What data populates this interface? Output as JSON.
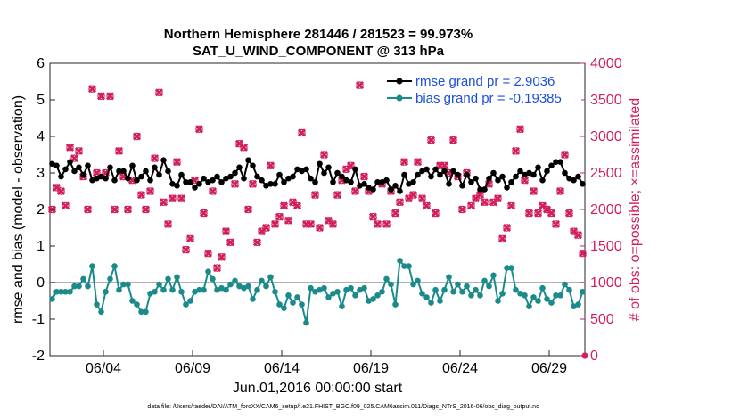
{
  "chart_data": {
    "type": "line",
    "title": "Northern Hemisphere 281446 / 281523 = 99.973%",
    "subtitle": "SAT_U_WIND_COMPONENT @ 313 hPa",
    "xlabel": "Jun.01,2016 00:00:00 start",
    "ylabel": "rmse and bias (model - observation)",
    "y2label": "# of obs: o=possible; ×=assimilated",
    "footer": "data file: /Users/raeder/DAI/ATM_forcXX/CAM6_setup/f.e21.FHIST_BGC.f09_025.CAM6assim.011/Diags_NTrS_2016-06/obs_diag_output.nc",
    "xlim": [
      1,
      31
    ],
    "ylim": [
      -2,
      6
    ],
    "y2lim": [
      0,
      4000
    ],
    "x_ticks": [
      4,
      9,
      14,
      19,
      24,
      29
    ],
    "x_tick_labels": [
      "06/04",
      "06/09",
      "06/14",
      "06/19",
      "06/24",
      "06/29"
    ],
    "y_ticks": [
      "-2",
      "-1",
      "0",
      "1",
      "2",
      "3",
      "4",
      "5",
      "6"
    ],
    "y2_ticks": [
      "0",
      "500",
      "1000",
      "1500",
      "2000",
      "2500",
      "3000",
      "3500",
      "4000"
    ],
    "legend": [
      "rmse grand pr = 2.9036",
      "bias grand pr = -0.19385"
    ],
    "colors": {
      "rmse": "#000000",
      "bias": "#1a8a8a",
      "obs": "#d11f5a",
      "legend_text": "#1f4fd8",
      "zero_line": "#b0b0b0"
    },
    "series": [
      {
        "name": "rmse",
        "x": [
          1.125,
          1.375,
          1.625,
          1.875,
          2.125,
          2.375,
          2.625,
          2.875,
          3.125,
          3.375,
          3.625,
          3.875,
          4.125,
          4.375,
          4.625,
          4.875,
          5.125,
          5.375,
          5.625,
          5.875,
          6.125,
          6.375,
          6.625,
          6.875,
          7.125,
          7.375,
          7.625,
          7.875,
          8.125,
          8.375,
          8.625,
          8.875,
          9.125,
          9.375,
          9.625,
          9.875,
          10.125,
          10.375,
          10.625,
          10.875,
          11.125,
          11.375,
          11.625,
          11.875,
          12.125,
          12.375,
          12.625,
          12.875,
          13.125,
          13.375,
          13.625,
          13.875,
          14.125,
          14.375,
          14.625,
          14.875,
          15.125,
          15.375,
          15.625,
          15.875,
          16.125,
          16.375,
          16.625,
          16.875,
          17.125,
          17.375,
          17.625,
          17.875,
          18.125,
          18.375,
          18.625,
          18.875,
          19.125,
          19.375,
          19.625,
          19.875,
          20.125,
          20.375,
          20.625,
          20.875,
          21.125,
          21.375,
          21.625,
          21.875,
          22.125,
          22.375,
          22.625,
          22.875,
          23.125,
          23.375,
          23.625,
          23.875,
          24.125,
          24.375,
          24.625,
          24.875,
          25.125,
          25.375,
          25.625,
          25.875,
          26.125,
          26.375,
          26.625,
          26.875,
          27.125,
          27.375,
          27.625,
          27.875,
          28.125,
          28.375,
          28.625,
          28.875,
          29.125,
          29.375,
          29.625,
          29.875,
          30.125,
          30.375,
          30.625,
          30.875
        ],
        "values": [
          3.25,
          3.2,
          2.9,
          3.1,
          3.3,
          3.05,
          3.15,
          2.95,
          3.2,
          2.8,
          2.85,
          2.9,
          2.85,
          3.15,
          2.8,
          3.05,
          3.05,
          2.85,
          3.2,
          2.8,
          2.9,
          3.05,
          2.8,
          3.15,
          2.95,
          3.35,
          3.05,
          2.7,
          2.65,
          2.95,
          2.75,
          2.75,
          2.6,
          2.7,
          2.85,
          2.75,
          2.8,
          2.9,
          2.75,
          2.85,
          2.9,
          3.0,
          3.15,
          2.85,
          3.35,
          3.2,
          2.9,
          2.8,
          2.65,
          2.7,
          2.7,
          2.95,
          2.75,
          2.85,
          2.9,
          3.1,
          3.05,
          3.1,
          2.85,
          2.75,
          3.25,
          3.0,
          3.15,
          2.75,
          3.0,
          2.9,
          2.8,
          2.75,
          3.1,
          2.65,
          2.7,
          2.6,
          2.55,
          2.75,
          2.75,
          2.8,
          2.55,
          2.65,
          2.5,
          2.95,
          2.7,
          2.75,
          2.95,
          3.05,
          3.1,
          2.9,
          3.1,
          2.95,
          3.05,
          2.7,
          3.05,
          2.95,
          2.65,
          2.95,
          2.75,
          2.85,
          2.55,
          2.55,
          2.85,
          3.0,
          2.8,
          2.9,
          2.6,
          2.75,
          2.9,
          3.05,
          2.95,
          3.0,
          2.95,
          3.15,
          2.8,
          3.05,
          3.2,
          3.3,
          3.3,
          3.0,
          2.85,
          2.8,
          2.9,
          2.7
        ]
      },
      {
        "name": "bias",
        "x": [
          1.125,
          1.375,
          1.625,
          1.875,
          2.125,
          2.375,
          2.625,
          2.875,
          3.125,
          3.375,
          3.625,
          3.875,
          4.125,
          4.375,
          4.625,
          4.875,
          5.125,
          5.375,
          5.625,
          5.875,
          6.125,
          6.375,
          6.625,
          6.875,
          7.125,
          7.375,
          7.625,
          7.875,
          8.125,
          8.375,
          8.625,
          8.875,
          9.125,
          9.375,
          9.625,
          9.875,
          10.125,
          10.375,
          10.625,
          10.875,
          11.125,
          11.375,
          11.625,
          11.875,
          12.125,
          12.375,
          12.625,
          12.875,
          13.125,
          13.375,
          13.625,
          13.875,
          14.125,
          14.375,
          14.625,
          14.875,
          15.125,
          15.375,
          15.625,
          15.875,
          16.125,
          16.375,
          16.625,
          16.875,
          17.125,
          17.375,
          17.625,
          17.875,
          18.125,
          18.375,
          18.625,
          18.875,
          19.125,
          19.375,
          19.625,
          19.875,
          20.125,
          20.375,
          20.625,
          20.875,
          21.125,
          21.375,
          21.625,
          21.875,
          22.125,
          22.375,
          22.625,
          22.875,
          23.125,
          23.375,
          23.625,
          23.875,
          24.125,
          24.375,
          24.625,
          24.875,
          25.125,
          25.375,
          25.625,
          25.875,
          26.125,
          26.375,
          26.625,
          26.875,
          27.125,
          27.375,
          27.625,
          27.875,
          28.125,
          28.375,
          28.625,
          28.875,
          29.125,
          29.375,
          29.625,
          29.875,
          30.125,
          30.375,
          30.625,
          30.875
        ],
        "values": [
          -0.45,
          -0.25,
          -0.25,
          -0.25,
          -0.25,
          -0.1,
          -0.1,
          0.1,
          -0.1,
          0.45,
          -0.6,
          -0.8,
          -0.25,
          0.1,
          0.45,
          -0.2,
          -0.05,
          -0.05,
          -0.5,
          -0.6,
          -0.8,
          -0.8,
          -0.3,
          -0.25,
          -0.05,
          -0.2,
          0.1,
          -0.2,
          0.15,
          -0.25,
          -0.6,
          -0.5,
          -0.25,
          -0.2,
          -0.2,
          0.3,
          0.1,
          -0.2,
          -0.15,
          -0.2,
          -0.05,
          0.05,
          -0.1,
          -0.15,
          -0.1,
          -0.45,
          -0.2,
          0.05,
          -0.1,
          0.15,
          -0.25,
          -0.6,
          -0.7,
          -0.35,
          -0.55,
          -0.4,
          -0.6,
          -1.1,
          -0.15,
          -0.25,
          -0.2,
          -0.15,
          -0.4,
          -0.3,
          -0.25,
          -0.65,
          -0.2,
          -0.15,
          -0.35,
          -0.2,
          -0.15,
          -0.5,
          -0.45,
          -0.35,
          -0.25,
          0.1,
          -0.05,
          -0.6,
          0.6,
          0.45,
          0.45,
          -0.05,
          0.05,
          -0.3,
          -0.4,
          -0.55,
          -0.2,
          -0.5,
          -0.2,
          0.15,
          -0.25,
          -0.05,
          -0.25,
          -0.1,
          -0.35,
          -0.2,
          -0.35,
          0.05,
          -0.1,
          0.2,
          -0.5,
          -0.3,
          0.4,
          0.4,
          -0.2,
          -0.3,
          -0.35,
          -0.65,
          -0.4,
          -0.5,
          -0.15,
          -0.45,
          -0.55,
          -0.35,
          -0.35,
          -0.05,
          -0.2,
          -0.65,
          -0.6,
          -0.25
        ]
      },
      {
        "name": "obs_possible",
        "axis": "right",
        "x": [
          1.125,
          1.375,
          1.625,
          1.875,
          2.125,
          2.375,
          2.625,
          2.875,
          3.125,
          3.375,
          3.625,
          3.875,
          4.125,
          4.375,
          4.625,
          4.875,
          5.125,
          5.375,
          5.625,
          5.875,
          6.125,
          6.375,
          6.625,
          6.875,
          7.125,
          7.375,
          7.625,
          7.875,
          8.125,
          8.375,
          8.625,
          8.875,
          9.125,
          9.375,
          9.625,
          9.875,
          10.125,
          10.375,
          10.625,
          10.875,
          11.125,
          11.375,
          11.625,
          11.875,
          12.125,
          12.375,
          12.625,
          12.875,
          13.125,
          13.375,
          13.625,
          13.875,
          14.125,
          14.375,
          14.625,
          14.875,
          15.125,
          15.375,
          15.625,
          15.875,
          16.125,
          16.375,
          16.625,
          16.875,
          17.125,
          17.375,
          17.625,
          17.875,
          18.125,
          18.375,
          18.625,
          18.875,
          19.125,
          19.375,
          19.625,
          19.875,
          20.125,
          20.375,
          20.625,
          20.875,
          21.125,
          21.375,
          21.625,
          21.875,
          22.125,
          22.375,
          22.625,
          22.875,
          23.125,
          23.375,
          23.625,
          23.875,
          24.125,
          24.375,
          24.625,
          24.875,
          25.125,
          25.375,
          25.625,
          25.875,
          26.125,
          26.375,
          26.625,
          26.875,
          27.125,
          27.375,
          27.625,
          27.875,
          28.125,
          28.375,
          28.625,
          28.875,
          29.125,
          29.375,
          29.625,
          29.875,
          30.125,
          30.375,
          30.625,
          30.875
        ],
        "values": [
          2000,
          2300,
          2250,
          2050,
          2850,
          2700,
          2800,
          2450,
          2000,
          3650,
          2500,
          3550,
          2500,
          3550,
          2000,
          2800,
          2450,
          2000,
          2400,
          3000,
          2200,
          2000,
          2250,
          2700,
          3600,
          2100,
          1800,
          2150,
          2650,
          2150,
          1450,
          1600,
          2400,
          3100,
          1950,
          1400,
          2250,
          1200,
          1350,
          1700,
          1550,
          2350,
          2900,
          2850,
          2000,
          2350,
          1550,
          1700,
          1750,
          2600,
          1800,
          1900,
          2050,
          1850,
          2100,
          2050,
          3050,
          1800,
          1800,
          2200,
          1750,
          2750,
          1850,
          1800,
          2200,
          2400,
          2550,
          2600,
          2250,
          3700,
          2450,
          2250,
          1900,
          1800,
          2350,
          1800,
          2250,
          1950,
          2100,
          2650,
          2150,
          2200,
          2650,
          2150,
          2050,
          2950,
          1950,
          2600,
          2600,
          2500,
          2950,
          2450,
          2000,
          2500,
          2050,
          2150,
          2200,
          2100,
          2350,
          2100,
          2150,
          1600,
          1750,
          2050,
          2800,
          3100,
          2400,
          1950,
          2250,
          1950,
          2050,
          2000,
          1950,
          1800,
          2250,
          2750,
          1950,
          1700,
          1650,
          1400
        ]
      },
      {
        "name": "obs_assimilated",
        "axis": "right",
        "x": [
          1.125,
          1.375,
          1.625,
          1.875,
          2.125,
          2.375,
          2.625,
          2.875,
          3.125,
          3.375,
          3.625,
          3.875,
          4.125,
          4.375,
          4.625,
          4.875,
          5.125,
          5.375,
          5.625,
          5.875,
          6.125,
          6.375,
          6.625,
          6.875,
          7.125,
          7.375,
          7.625,
          7.875,
          8.125,
          8.375,
          8.625,
          8.875,
          9.125,
          9.375,
          9.625,
          9.875,
          10.125,
          10.375,
          10.625,
          10.875,
          11.125,
          11.375,
          11.625,
          11.875,
          12.125,
          12.375,
          12.625,
          12.875,
          13.125,
          13.375,
          13.625,
          13.875,
          14.125,
          14.375,
          14.625,
          14.875,
          15.125,
          15.375,
          15.625,
          15.875,
          16.125,
          16.375,
          16.625,
          16.875,
          17.125,
          17.375,
          17.625,
          17.875,
          18.125,
          18.375,
          18.625,
          18.875,
          19.125,
          19.375,
          19.625,
          19.875,
          20.125,
          20.375,
          20.625,
          20.875,
          21.125,
          21.375,
          21.625,
          21.875,
          22.125,
          22.375,
          22.625,
          22.875,
          23.125,
          23.375,
          23.625,
          23.875,
          24.125,
          24.375,
          24.625,
          24.875,
          25.125,
          25.375,
          25.625,
          25.875,
          26.125,
          26.375,
          26.625,
          26.875,
          27.125,
          27.375,
          27.625,
          27.875,
          28.125,
          28.375,
          28.625,
          28.875,
          29.125,
          29.375,
          29.625,
          29.875,
          30.125,
          30.375,
          30.625,
          30.875
        ],
        "values": [
          2000,
          2300,
          2250,
          2050,
          2850,
          2700,
          2800,
          2450,
          2000,
          3650,
          2500,
          3550,
          2500,
          3550,
          2000,
          2800,
          2450,
          2000,
          2400,
          3000,
          2200,
          2000,
          2250,
          2700,
          3600,
          2100,
          1800,
          2150,
          2650,
          2150,
          1450,
          1600,
          2400,
          3100,
          1950,
          1400,
          2250,
          1200,
          1350,
          1700,
          1550,
          2350,
          2900,
          2850,
          2000,
          2350,
          1550,
          1700,
          1750,
          2600,
          1800,
          1900,
          2050,
          1850,
          2100,
          2050,
          3050,
          1800,
          1800,
          2200,
          1750,
          2750,
          1850,
          1800,
          2200,
          2400,
          2550,
          2600,
          2250,
          3700,
          2450,
          2250,
          1900,
          1800,
          2350,
          1800,
          2250,
          1950,
          2100,
          2650,
          2150,
          2200,
          2650,
          2150,
          2050,
          2950,
          1950,
          2600,
          2600,
          2500,
          2950,
          2450,
          2000,
          2500,
          2050,
          2150,
          2200,
          2100,
          2350,
          2100,
          2150,
          1600,
          1750,
          2050,
          2800,
          3100,
          2400,
          1950,
          2250,
          1950,
          2050,
          2000,
          1950,
          1800,
          2250,
          2750,
          1950,
          1700,
          1650,
          1400
        ]
      }
    ]
  }
}
